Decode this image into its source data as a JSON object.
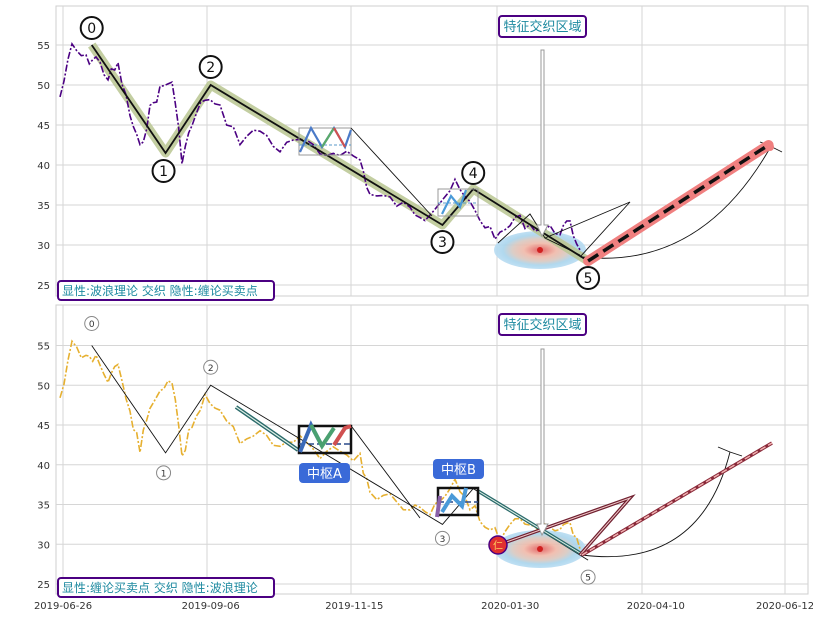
{
  "chart_data": [
    {
      "type": "line",
      "panel": "top",
      "ylim": [
        23,
        60
      ],
      "y_ticks": [
        25,
        30,
        35,
        40,
        45,
        50,
        55
      ],
      "grid": true,
      "title_box": "特征交织区域",
      "legend_text": "显性:波浪理论 交织 隐性:缠论买卖点",
      "legend_placement": "bottom-left",
      "price_color": "#4b0082",
      "price_style": "dashdot",
      "wave_color": "#8fa060",
      "wave_labels": [
        "0",
        "1",
        "2",
        "3",
        "4",
        "5"
      ],
      "wave_points": [
        {
          "x": "2019-07-10",
          "y": 55
        },
        {
          "x": "2019-08-15",
          "y": 41.5
        },
        {
          "x": "2019-09-06",
          "y": 50
        },
        {
          "x": "2019-12-28",
          "y": 32.5
        },
        {
          "x": "2020-01-12",
          "y": 37
        },
        {
          "x": "2020-03-08",
          "y": 28
        }
      ],
      "projection": {
        "from": {
          "x": "2020-03-08",
          "y": 28
        },
        "to": {
          "x": "2020-06-04",
          "y": 42.5
        },
        "color": "#f08080"
      }
    },
    {
      "type": "line",
      "panel": "bottom",
      "ylim": [
        23,
        60
      ],
      "y_ticks": [
        25,
        30,
        35,
        40,
        45,
        50,
        55
      ],
      "grid": true,
      "title_box": "特征交织区域",
      "legend_text": "显性:缠论买卖点 交织 隐性:波浪理论",
      "legend_placement": "bottom-left",
      "price_color": "#e6b030",
      "price_style": "dashdot",
      "wave_labels": [
        "0",
        "1",
        "2",
        "3",
        "5"
      ],
      "pivot_labels": [
        "中枢A",
        "中枢B"
      ],
      "marker_label": "仁",
      "x_ticks": [
        "2019-06-26",
        "2019-09-06",
        "2019-11-15",
        "2020-01-30",
        "2020-04-10",
        "2020-06-12"
      ]
    }
  ]
}
